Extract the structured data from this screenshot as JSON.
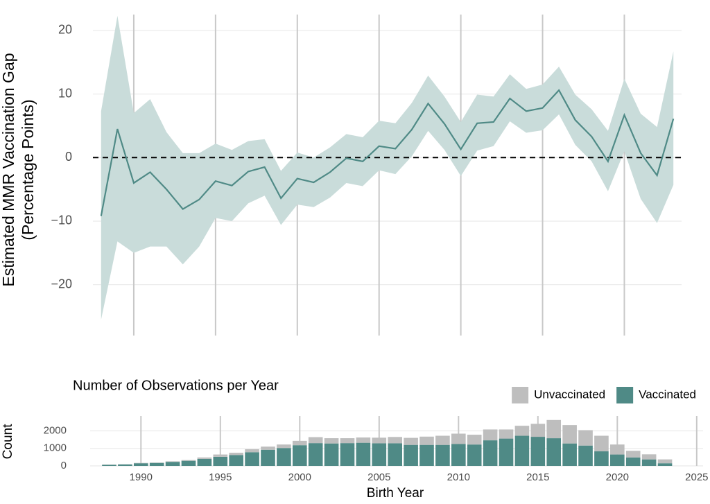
{
  "chart_data": [
    {
      "type": "line",
      "ylabel": [
        "Estimated MMR Vaccination Gap",
        "(Percentage Points)"
      ],
      "x": [
        1988,
        1989,
        1990,
        1991,
        1992,
        1993,
        1994,
        1995,
        1996,
        1997,
        1998,
        1999,
        2000,
        2001,
        2002,
        2003,
        2004,
        2005,
        2006,
        2007,
        2008,
        2009,
        2010,
        2011,
        2012,
        2013,
        2014,
        2015,
        2016,
        2017,
        2018,
        2019,
        2020,
        2021,
        2022,
        2023
      ],
      "values": [
        -9.2,
        4.5,
        -4,
        -2.3,
        -5,
        -8.1,
        -6.6,
        -3.7,
        -4.4,
        -2.2,
        -1.5,
        -6.4,
        -3.3,
        -3.9,
        -2.3,
        -0.1,
        -0.6,
        1.8,
        1.4,
        4.4,
        8.5,
        5.3,
        1.3,
        5.4,
        5.6,
        9.3,
        7.3,
        7.8,
        10.6,
        5.9,
        3.3,
        -0.6,
        6.7,
        0.7,
        -2.8,
        6.1
      ],
      "lower": [
        -25.5,
        -13.2,
        -15,
        -14,
        -14,
        -16.8,
        -14,
        -9.5,
        -10,
        -7.2,
        -6,
        -10.6,
        -7.4,
        -7.8,
        -6.3,
        -4,
        -4.5,
        -2,
        -2.6,
        0.2,
        4.2,
        1.2,
        -2.9,
        1.1,
        1.8,
        5.7,
        3.9,
        4.3,
        6.8,
        2,
        -0.6,
        -5.3,
        1,
        -6.5,
        -10.3,
        -4.3
      ],
      "upper": [
        7.3,
        22.3,
        7,
        9.2,
        4,
        0.7,
        0.7,
        2.2,
        1.2,
        2.6,
        2.9,
        -2.1,
        0.8,
        0,
        1.6,
        3.7,
        3.2,
        5.8,
        5.4,
        8.6,
        12.9,
        9.6,
        5.6,
        9.9,
        9.6,
        13.1,
        10.8,
        11.5,
        14.3,
        9.9,
        7.6,
        4.2,
        12.4,
        6.9,
        4.8,
        16.7
      ],
      "color": "#4f8a86",
      "band_color": "#c9dcda",
      "xlim": [
        1987.5,
        2023.5
      ],
      "xticks": [
        1990,
        1995,
        2000,
        2005,
        2010,
        2015,
        2020
      ],
      "ylim": [
        -28,
        22.5
      ],
      "yticks": [
        {
          "value": -20,
          "label": "−20"
        },
        {
          "value": -10,
          "label": "−10"
        },
        0,
        10,
        20
      ],
      "hline": 0,
      "grid": true
    },
    {
      "type": "bar",
      "stacked": true,
      "title": "Number of Observations per Year",
      "xlabel": "Birth Year",
      "ylabel": "Count",
      "x": [
        1988,
        1989,
        1990,
        1991,
        1992,
        1993,
        1994,
        1995,
        1996,
        1997,
        1998,
        1999,
        2000,
        2001,
        2002,
        2003,
        2004,
        2005,
        2006,
        2007,
        2008,
        2009,
        2010,
        2011,
        2012,
        2013,
        2014,
        2015,
        2016,
        2017,
        2018,
        2019,
        2020,
        2021,
        2022,
        2023
      ],
      "series": [
        {
          "name": "Unvaccinated",
          "color": "#bebebe",
          "values": [
            10,
            10,
            20,
            20,
            30,
            40,
            80,
            130,
            130,
            170,
            180,
            200,
            250,
            340,
            300,
            280,
            300,
            320,
            360,
            400,
            470,
            520,
            590,
            560,
            620,
            520,
            570,
            740,
            1040,
            1050,
            880,
            890,
            570,
            380,
            290,
            220
          ]
        },
        {
          "name": "Vaccinated",
          "color": "#4f8a86",
          "values": [
            60,
            80,
            150,
            170,
            230,
            290,
            400,
            520,
            620,
            780,
            920,
            1020,
            1180,
            1300,
            1280,
            1300,
            1320,
            1290,
            1290,
            1200,
            1200,
            1200,
            1250,
            1220,
            1460,
            1560,
            1720,
            1660,
            1580,
            1280,
            1160,
            830,
            650,
            480,
            370,
            150
          ]
        }
      ],
      "xlim": [
        1986.8,
        2025.4
      ],
      "xticks": [
        1990,
        1995,
        2000,
        2005,
        2010,
        2015,
        2020,
        2025
      ],
      "ylim": [
        0,
        2850
      ],
      "yticks": [
        0,
        1000,
        2000
      ],
      "legend": "top-right",
      "grid": true
    }
  ]
}
